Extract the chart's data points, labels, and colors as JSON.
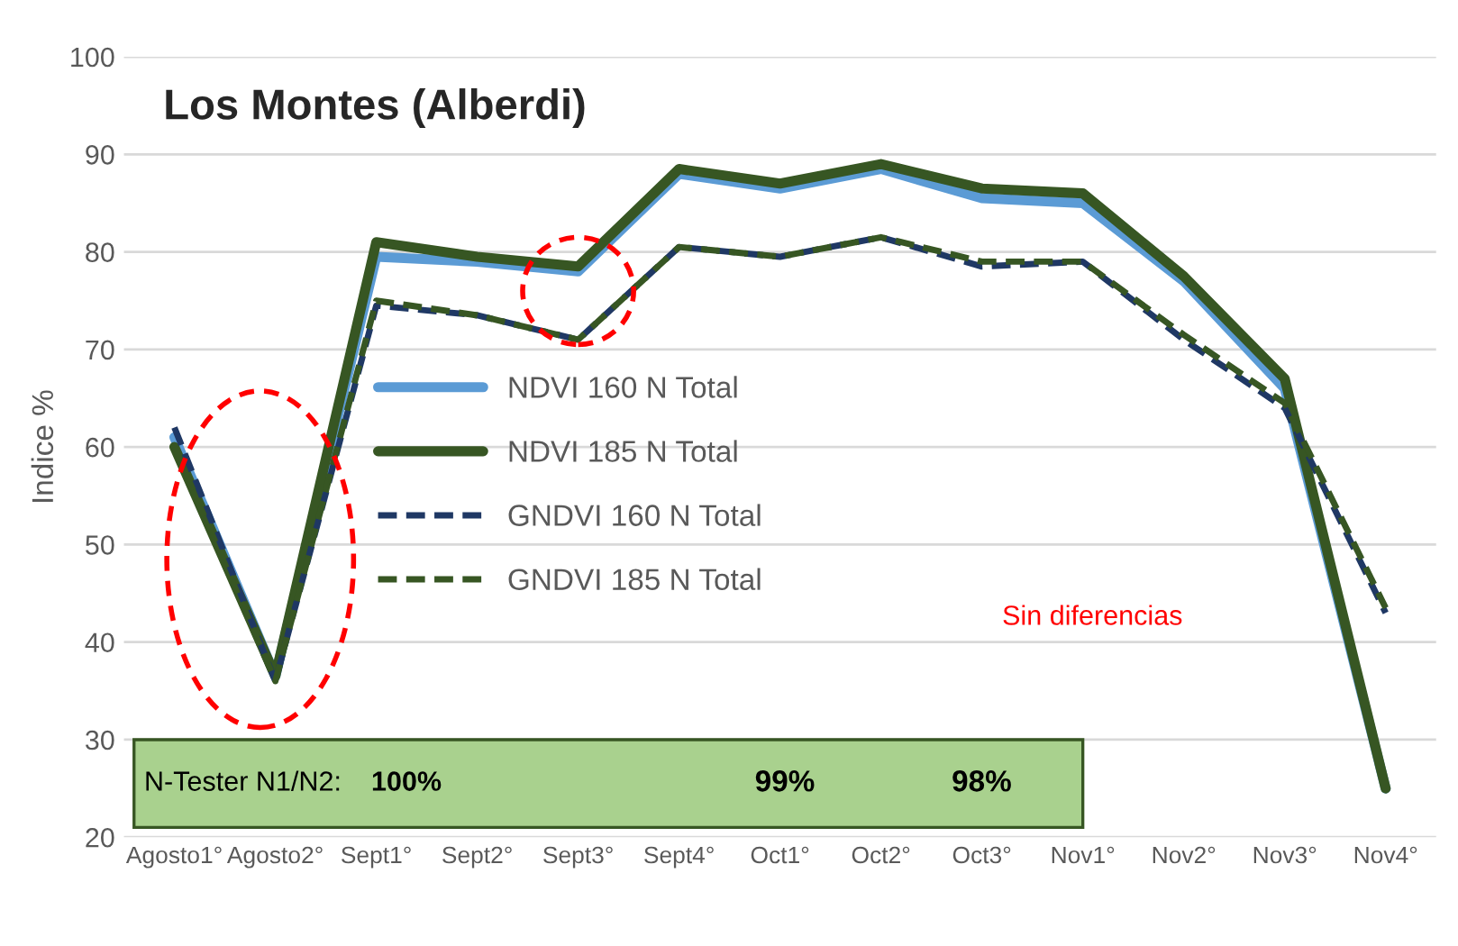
{
  "chart_data": {
    "type": "line",
    "title": "Los Montes (Alberdi)",
    "ylabel": "Indice %",
    "categories": [
      "Agosto1°",
      "Agosto2°",
      "Sept1°",
      "Sept2°",
      "Sept3°",
      "Sept4°",
      "Oct1°",
      "Oct2°",
      "Oct3°",
      "Nov1°",
      "Nov2°",
      "Nov3°",
      "Nov4°"
    ],
    "series": [
      {
        "name": "NDVI 160 N Total",
        "color": "#5b9bd5",
        "line_style": "solid",
        "values": [
          61,
          36.5,
          79.5,
          79,
          78,
          88,
          86.5,
          88.5,
          85.5,
          85,
          77,
          66,
          25
        ]
      },
      {
        "name": "NDVI 185 N Total",
        "color": "#375623",
        "line_style": "solid",
        "values": [
          60,
          36.5,
          81,
          79.5,
          78.5,
          88.5,
          87,
          89,
          86.5,
          86,
          77.5,
          67,
          25
        ]
      },
      {
        "name": "GNDVI 160 N Total",
        "color": "#1f3864",
        "line_style": "dashed",
        "values": [
          62,
          36,
          74.5,
          73.5,
          71,
          80.5,
          79.5,
          81.5,
          78.5,
          79,
          71,
          64,
          43
        ]
      },
      {
        "name": "GNDVI 185 N Total",
        "color": "#375623",
        "line_style": "dashed",
        "values": [
          60,
          36,
          75,
          73.5,
          71,
          80.5,
          79.5,
          81.5,
          79,
          79,
          71.5,
          64.5,
          43.5
        ]
      }
    ],
    "ylim": [
      20,
      100
    ],
    "yticks": [
      20,
      30,
      40,
      50,
      60,
      70,
      80,
      90,
      100
    ],
    "grid": "y",
    "legend": "center",
    "annotations": [
      "Sin diferencias",
      "N-Tester N1/N2:",
      "100%",
      "99%",
      "98%"
    ]
  }
}
